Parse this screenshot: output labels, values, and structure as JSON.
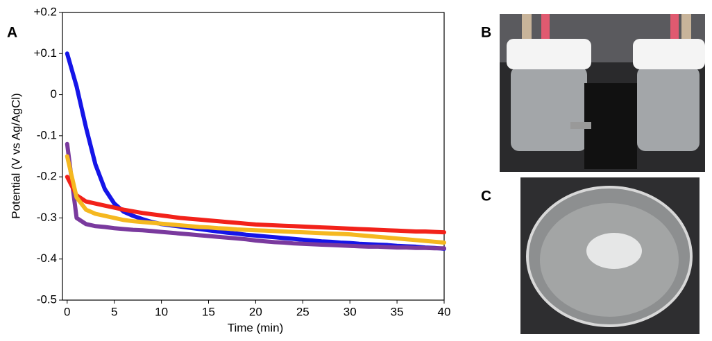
{
  "chart_data": {
    "type": "line",
    "x_label": "Time (min)",
    "y_label": "Potential (V vs Ag/AgCl)",
    "xlim": [
      -0.5,
      40
    ],
    "ylim": [
      -0.5,
      0.2
    ],
    "xticks": [
      0,
      5,
      10,
      15,
      20,
      25,
      30,
      35,
      40
    ],
    "yticks": [
      {
        "value": 0.2,
        "label": "+0.2"
      },
      {
        "value": 0.1,
        "label": "+0.1"
      },
      0,
      -0.1,
      -0.2,
      -0.3,
      -0.4,
      -0.5
    ],
    "x": [
      0,
      1,
      2,
      3,
      4,
      5,
      6,
      7,
      8,
      9,
      10,
      11,
      12,
      13,
      14,
      15,
      16,
      17,
      18,
      19,
      20,
      21,
      22,
      23,
      24,
      25,
      26,
      27,
      28,
      29,
      30,
      31,
      32,
      33,
      34,
      35,
      36,
      37,
      38,
      39,
      40
    ],
    "series": [
      {
        "color": "#1515e8",
        "values": [
          0.1,
          0.02,
          -0.08,
          -0.17,
          -0.23,
          -0.265,
          -0.285,
          -0.295,
          -0.303,
          -0.31,
          -0.315,
          -0.318,
          -0.321,
          -0.324,
          -0.327,
          -0.33,
          -0.333,
          -0.336,
          -0.338,
          -0.341,
          -0.343,
          -0.345,
          -0.347,
          -0.349,
          -0.351,
          -0.353,
          -0.355,
          -0.357,
          -0.358,
          -0.36,
          -0.361,
          -0.363,
          -0.364,
          -0.365,
          -0.366,
          -0.368,
          -0.369,
          -0.37,
          -0.372,
          -0.373,
          -0.375
        ]
      },
      {
        "color": "#7a3a9e",
        "values": [
          -0.12,
          -0.3,
          -0.315,
          -0.32,
          -0.322,
          -0.325,
          -0.327,
          -0.329,
          -0.33,
          -0.332,
          -0.334,
          -0.336,
          -0.338,
          -0.34,
          -0.342,
          -0.344,
          -0.346,
          -0.348,
          -0.35,
          -0.352,
          -0.355,
          -0.357,
          -0.359,
          -0.36,
          -0.362,
          -0.363,
          -0.364,
          -0.365,
          -0.366,
          -0.367,
          -0.368,
          -0.369,
          -0.37,
          -0.37,
          -0.371,
          -0.372,
          -0.372,
          -0.373,
          -0.373,
          -0.374,
          -0.374
        ]
      },
      {
        "color": "#f2221a",
        "values": [
          -0.2,
          -0.245,
          -0.26,
          -0.265,
          -0.27,
          -0.275,
          -0.28,
          -0.284,
          -0.288,
          -0.291,
          -0.294,
          -0.297,
          -0.3,
          -0.302,
          -0.304,
          -0.306,
          -0.308,
          -0.31,
          -0.312,
          -0.314,
          -0.316,
          -0.317,
          -0.318,
          -0.319,
          -0.32,
          -0.321,
          -0.322,
          -0.323,
          -0.324,
          -0.325,
          -0.326,
          -0.327,
          -0.328,
          -0.329,
          -0.33,
          -0.331,
          -0.332,
          -0.333,
          -0.333,
          -0.334,
          -0.335
        ]
      },
      {
        "color": "#f5b820",
        "values": [
          -0.15,
          -0.25,
          -0.28,
          -0.29,
          -0.295,
          -0.3,
          -0.305,
          -0.308,
          -0.31,
          -0.312,
          -0.314,
          -0.316,
          -0.318,
          -0.32,
          -0.322,
          -0.323,
          -0.325,
          -0.326,
          -0.328,
          -0.329,
          -0.33,
          -0.331,
          -0.332,
          -0.333,
          -0.334,
          -0.335,
          -0.336,
          -0.337,
          -0.338,
          -0.339,
          -0.34,
          -0.342,
          -0.344,
          -0.346,
          -0.348,
          -0.35,
          -0.352,
          -0.354,
          -0.356,
          -0.358,
          -0.36
        ]
      }
    ]
  },
  "panel_labels": [
    "A",
    "B",
    "C"
  ]
}
